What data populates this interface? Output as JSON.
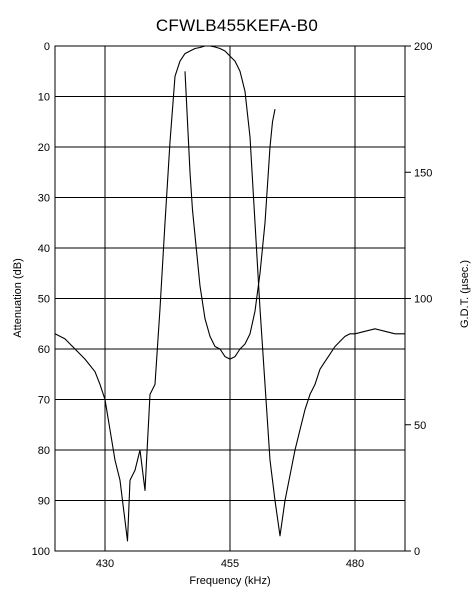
{
  "chart_data": {
    "type": "line",
    "title": "CFWLB455KEFA-B0",
    "xlabel": "Frequency (kHz)",
    "ylabel_left": "Attenuation (dB)",
    "ylabel_right": "G.D.T. (µsec.)",
    "x_range": [
      420,
      490
    ],
    "y_left_range": [
      0,
      100
    ],
    "y_left_inverted": true,
    "y_right_range": [
      0,
      200
    ],
    "x_ticks": [
      430,
      455,
      480
    ],
    "x_tick_labels": [
      "430",
      "455",
      "480"
    ],
    "y_left_ticks": [
      0,
      10,
      20,
      30,
      40,
      50,
      60,
      70,
      80,
      90,
      100
    ],
    "y_left_tick_labels": [
      "0",
      "10",
      "20",
      "30",
      "40",
      "50",
      "60",
      "70",
      "80",
      "90",
      "100"
    ],
    "y_right_ticks": [
      0,
      50,
      100,
      150,
      200
    ],
    "y_right_tick_labels": [
      "0",
      "50",
      "100",
      "150",
      "200"
    ],
    "grid": true,
    "series": [
      {
        "axis": "left",
        "x": [
          420,
          422,
          424,
          426,
          428,
          429,
          430,
          431,
          432,
          433,
          434,
          434.5,
          435,
          436,
          437,
          438,
          439,
          440,
          441,
          442,
          443,
          444,
          445,
          446,
          447,
          448,
          449,
          450,
          451,
          452,
          453,
          454,
          455,
          456,
          457,
          458,
          459,
          460,
          461,
          462,
          463,
          464,
          465,
          466,
          467,
          468,
          469,
          470,
          471,
          472,
          473,
          474,
          475,
          476,
          477,
          478,
          479,
          480,
          482,
          484,
          486,
          488,
          490
        ],
        "y": [
          57,
          58,
          60,
          62,
          64.5,
          67,
          70,
          76,
          82,
          86,
          94,
          98,
          86,
          84,
          80,
          88,
          69,
          67,
          52,
          35,
          19,
          6,
          3,
          1.5,
          1,
          0.5,
          0.3,
          0,
          0,
          0.2,
          0.5,
          1,
          2,
          3,
          5,
          9,
          18,
          35,
          52,
          67,
          82,
          90,
          97,
          90,
          85,
          80,
          76,
          72,
          69,
          67,
          64,
          62.5,
          61,
          59.5,
          58.5,
          57.5,
          57,
          57,
          56.5,
          56,
          56.5,
          57,
          57
        ]
      },
      {
        "axis": "right",
        "x": [
          446,
          446.5,
          447,
          447.5,
          448,
          449,
          450,
          451,
          452,
          453,
          454,
          455,
          456,
          457,
          458,
          459,
          460,
          461,
          462,
          462.5,
          463,
          463.5,
          464
        ],
        "y": [
          190,
          170,
          150,
          135,
          125,
          105,
          92,
          85,
          81,
          80,
          77,
          76,
          77,
          80,
          82,
          86,
          95,
          110,
          130,
          145,
          160,
          170,
          175
        ]
      }
    ]
  }
}
